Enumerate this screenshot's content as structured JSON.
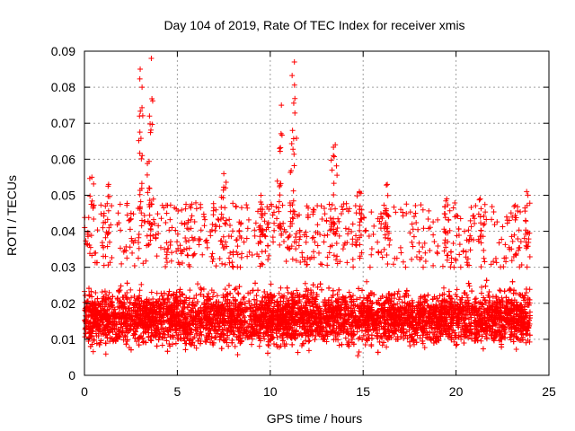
{
  "chart_data": {
    "type": "scatter",
    "title": "Day 104 of 2019, Rate Of TEC Index for receiver xmis",
    "xlabel": "GPS time / hours",
    "ylabel": "ROTI / TECUs",
    "xlim": [
      0,
      25
    ],
    "ylim": [
      0,
      0.09
    ],
    "x_ticks": [
      "0",
      "5",
      "10",
      "15",
      "20",
      "25"
    ],
    "y_ticks": [
      "0",
      "0.01",
      "0.02",
      "0.03",
      "0.04",
      "0.05",
      "0.06",
      "0.07",
      "0.08",
      "0.09"
    ],
    "grid": true,
    "marker": "+",
    "series": [
      {
        "color": "#ff0000",
        "x_range": [
          0,
          24
        ],
        "typical_y_range": [
          0.005,
          0.035
        ],
        "spikes": [
          {
            "x": 3.0,
            "y": 0.085
          },
          {
            "x": 3.1,
            "y": 0.08
          },
          {
            "x": 3.6,
            "y": 0.088
          },
          {
            "x": 3.5,
            "y": 0.072
          },
          {
            "x": 10.6,
            "y": 0.075
          },
          {
            "x": 11.3,
            "y": 0.087
          },
          {
            "x": 11.2,
            "y": 0.068
          },
          {
            "x": 10.5,
            "y": 0.063
          },
          {
            "x": 13.5,
            "y": 0.064
          },
          {
            "x": 13.4,
            "y": 0.061
          },
          {
            "x": 7.5,
            "y": 0.056
          },
          {
            "x": 0.4,
            "y": 0.055
          },
          {
            "x": 1.3,
            "y": 0.053
          },
          {
            "x": 16.3,
            "y": 0.053
          },
          {
            "x": 23.8,
            "y": 0.051
          },
          {
            "x": 19.5,
            "y": 0.049
          },
          {
            "x": 21.3,
            "y": 0.049
          },
          {
            "x": 9.5,
            "y": 0.05
          },
          {
            "x": 14.8,
            "y": 0.051
          }
        ]
      }
    ]
  }
}
